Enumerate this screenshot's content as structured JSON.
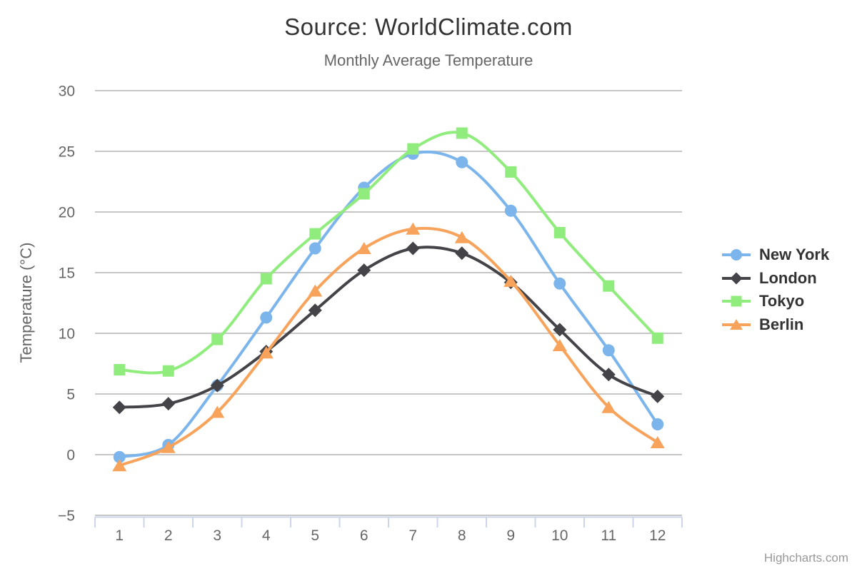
{
  "chart": {
    "title": "Source: WorldClimate.com",
    "subtitle": "Monthly Average Temperature",
    "credits": "Highcharts.com"
  },
  "chart_data": {
    "type": "line",
    "line_shape": "spline",
    "title": "Source: WorldClimate.com",
    "subtitle": "Monthly Average Temperature",
    "xlabel": "",
    "ylabel": "Temperature (°C)",
    "x": [
      1,
      2,
      3,
      4,
      5,
      6,
      7,
      8,
      9,
      10,
      11,
      12
    ],
    "xticks": [
      "1",
      "2",
      "3",
      "4",
      "5",
      "6",
      "7",
      "8",
      "9",
      "10",
      "11",
      "12"
    ],
    "ylim": [
      -5,
      30
    ],
    "ytick_interval": 5,
    "yticks": [
      "−5",
      "0",
      "5",
      "10",
      "15",
      "20",
      "25",
      "30"
    ],
    "grid": true,
    "legend_position": "right-middle",
    "series": [
      {
        "name": "New York",
        "color": "#7cb5ec",
        "marker": "circle",
        "values": [
          -0.2,
          0.8,
          5.7,
          11.3,
          17.0,
          22.0,
          24.8,
          24.1,
          20.1,
          14.1,
          8.6,
          2.5
        ]
      },
      {
        "name": "London",
        "color": "#434348",
        "marker": "diamond",
        "values": [
          3.9,
          4.2,
          5.7,
          8.5,
          11.9,
          15.2,
          17.0,
          16.6,
          14.2,
          10.3,
          6.6,
          4.8
        ]
      },
      {
        "name": "Tokyo",
        "color": "#90ed7d",
        "marker": "square",
        "values": [
          7.0,
          6.9,
          9.5,
          14.5,
          18.2,
          21.5,
          25.2,
          26.5,
          23.3,
          18.3,
          13.9,
          9.6
        ]
      },
      {
        "name": "Berlin",
        "color": "#f7a35c",
        "marker": "triangle",
        "values": [
          -0.9,
          0.6,
          3.5,
          8.4,
          13.5,
          17.0,
          18.6,
          17.9,
          14.3,
          9.0,
          3.9,
          1.0
        ]
      }
    ]
  },
  "colors": {
    "title_text": "#333333",
    "subtitle_text": "#666666",
    "axis_label_text": "#666666",
    "gridline": "#c6c6c6",
    "x_axis_line": "#ccd6eb",
    "legend_text": "#333333",
    "credits_text": "#999999"
  }
}
